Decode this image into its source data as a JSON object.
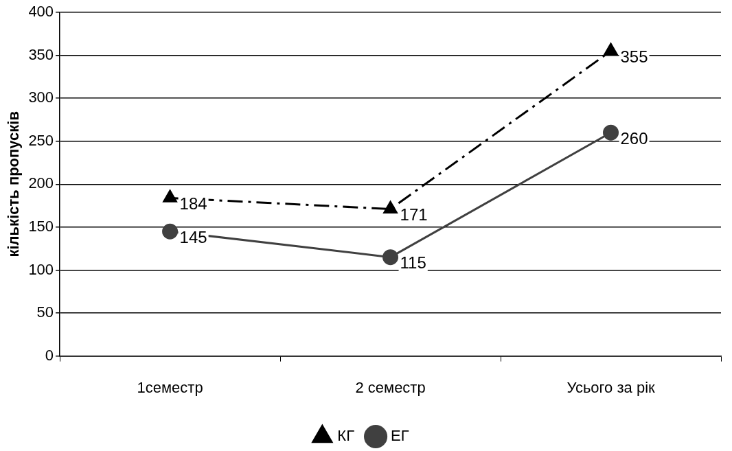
{
  "chart_data": {
    "type": "line",
    "ylabel": "кількість пропусків",
    "categories": [
      "1семестр",
      "2 семестр",
      "Усього за рік"
    ],
    "series": [
      {
        "name": "КГ",
        "color": "#000000",
        "values": [
          184,
          171,
          355
        ],
        "marker": "triangle",
        "line_style": "dashed"
      },
      {
        "name": "ЕГ",
        "color": "#404040",
        "values": [
          145,
          115,
          260
        ],
        "marker": "circle",
        "line_style": "solid"
      }
    ],
    "ylim": [
      0,
      400
    ],
    "yticks": [
      0,
      50,
      100,
      150,
      200,
      250,
      300,
      350,
      400
    ],
    "grid": "y",
    "legend": "bottom",
    "data_labels": true
  }
}
